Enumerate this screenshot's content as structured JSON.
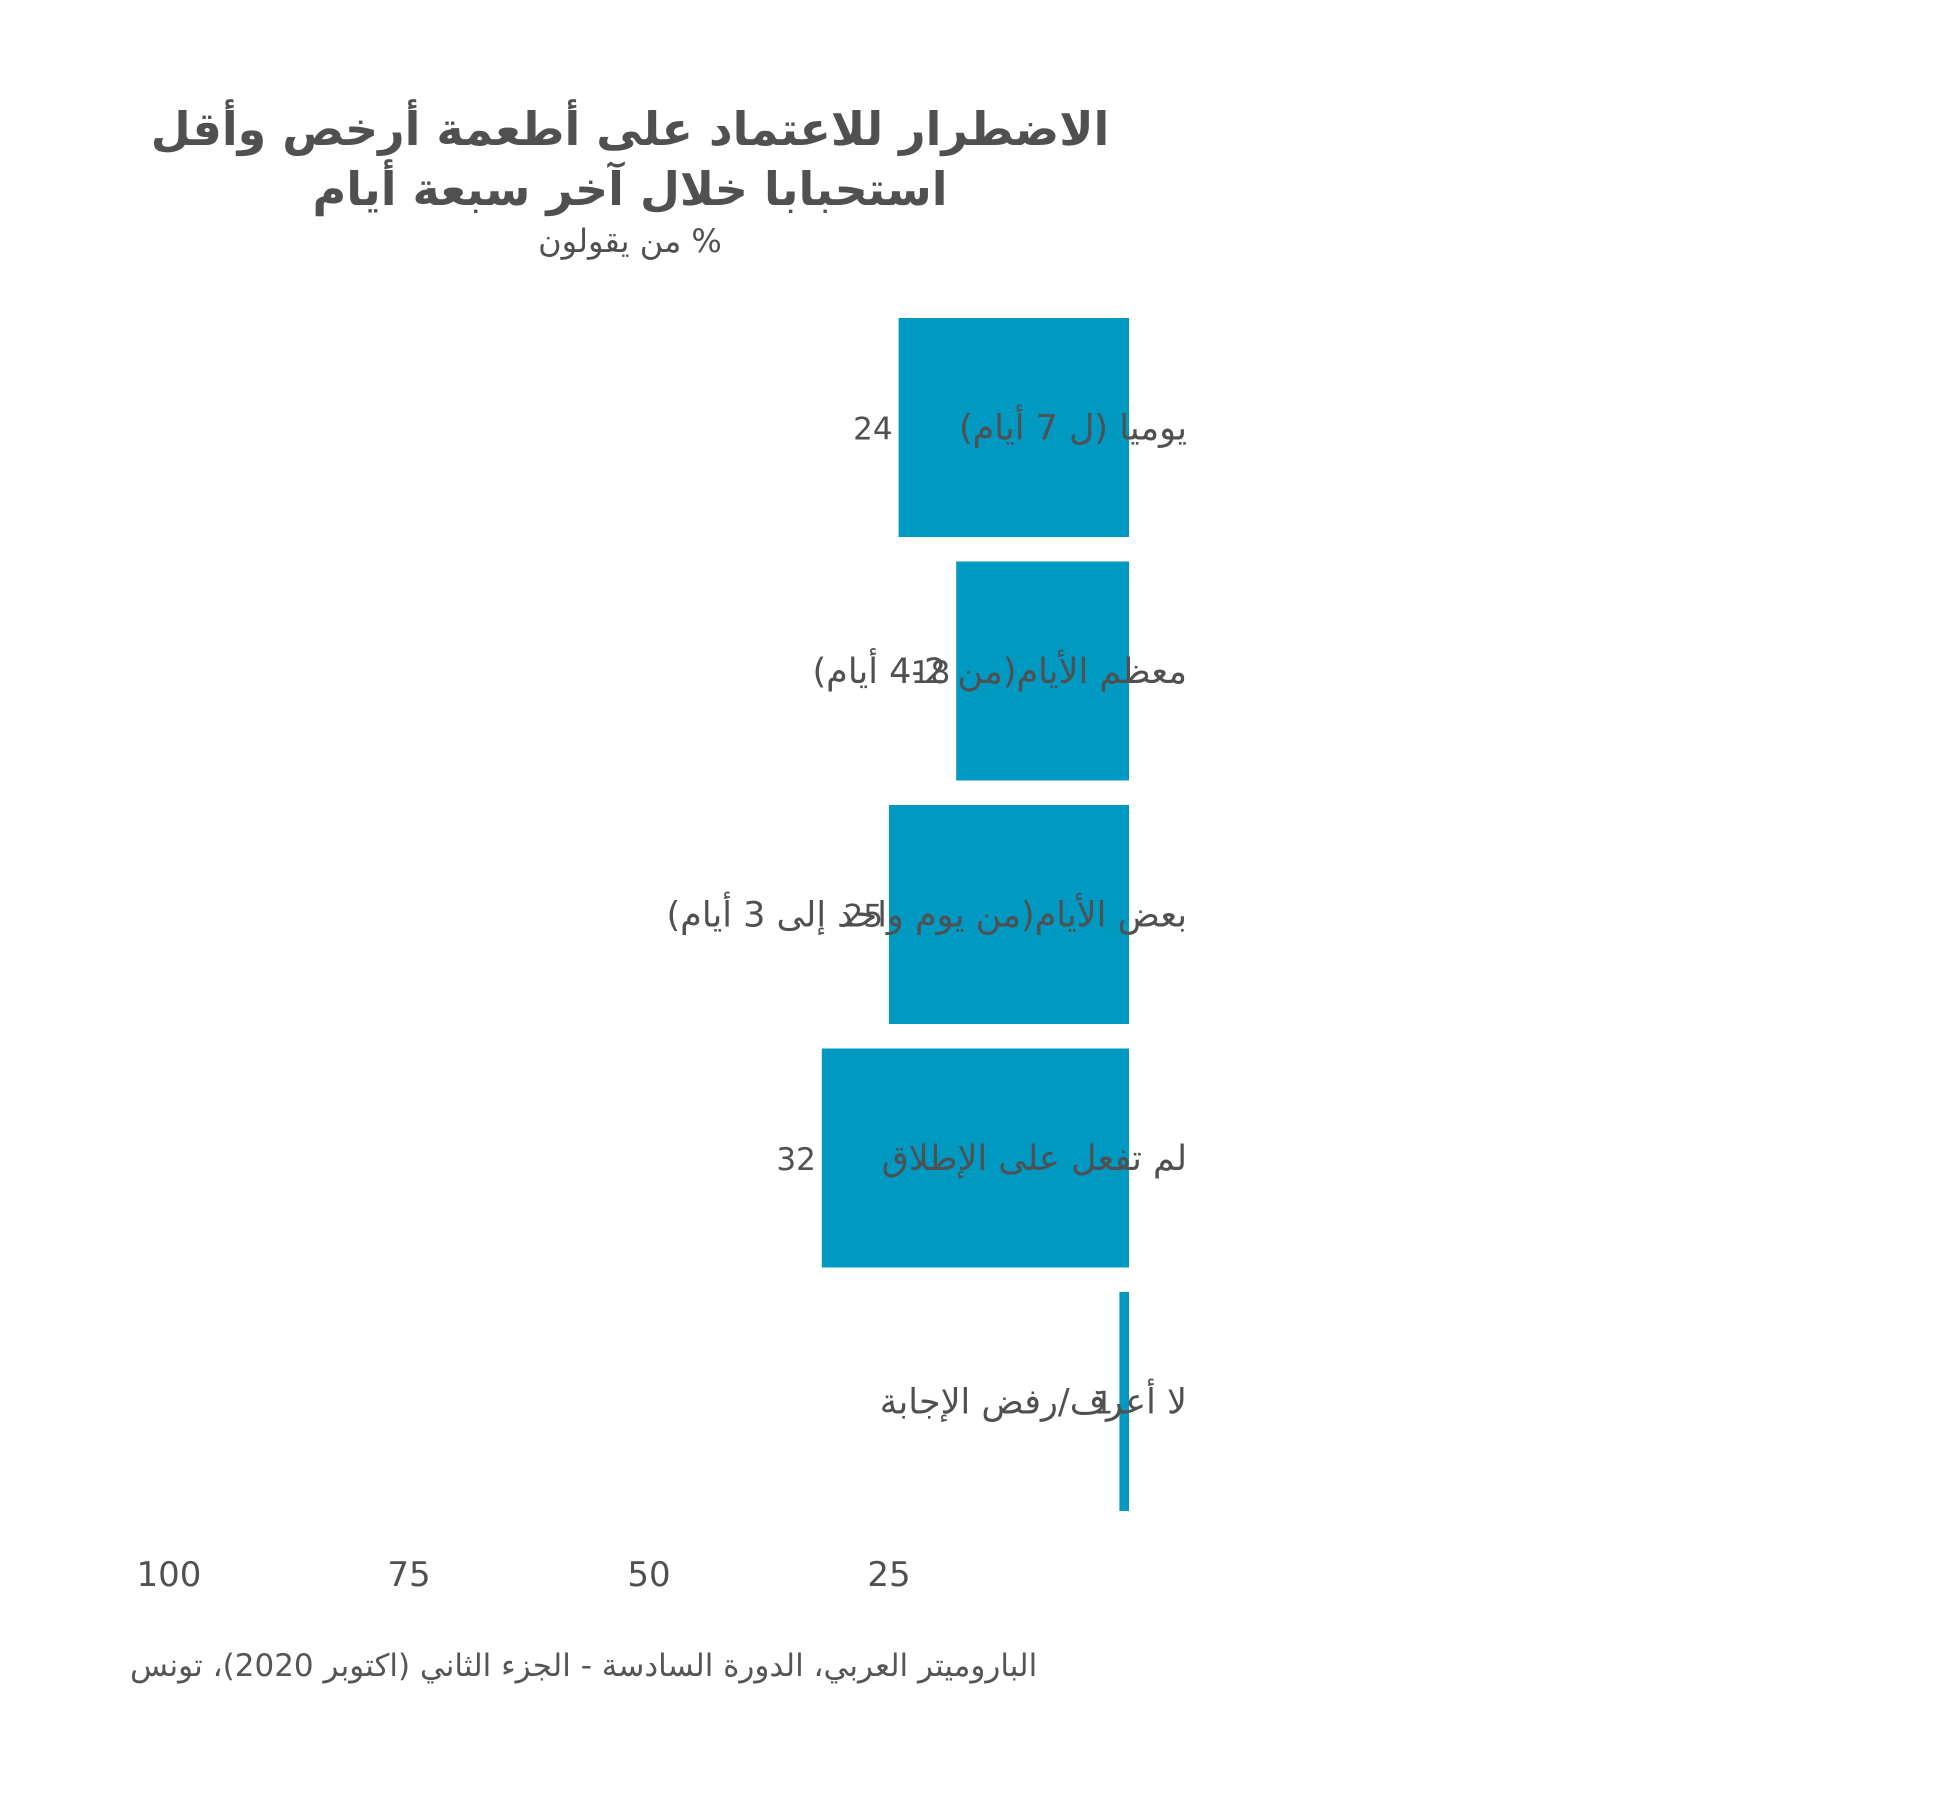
{
  "title_line1": "الاضطرار للاعتماد على أطعمة أرخص وأقل",
  "title_line2": "استحبابا خلال آخر سبعة أيام",
  "subtitle": "% من يقولون",
  "source": "الباروميتر العربي، الدورة السادسة - الجزء الثاني (اكتوبر 2020)، تونس",
  "colors": {
    "bar": "#0099c2",
    "text": "#505050"
  },
  "chart_data": {
    "type": "bar",
    "orientation": "horizontal",
    "direction": "right-to-left",
    "categories": [
      "يوميا (ل 7 أيام)",
      "معظم الأيام(من 2-4 أيام)",
      "بعض الأيام(من يوم واحد إلى 3 أيام)",
      "لم تفعل على الإطلاق",
      "لا أعرف/رفض الإجابة"
    ],
    "values": [
      24,
      18,
      25,
      32,
      1
    ],
    "xlim": [
      0,
      100
    ],
    "x_ticks": [
      100,
      75,
      50,
      25
    ],
    "grid": false,
    "legend": "none"
  }
}
